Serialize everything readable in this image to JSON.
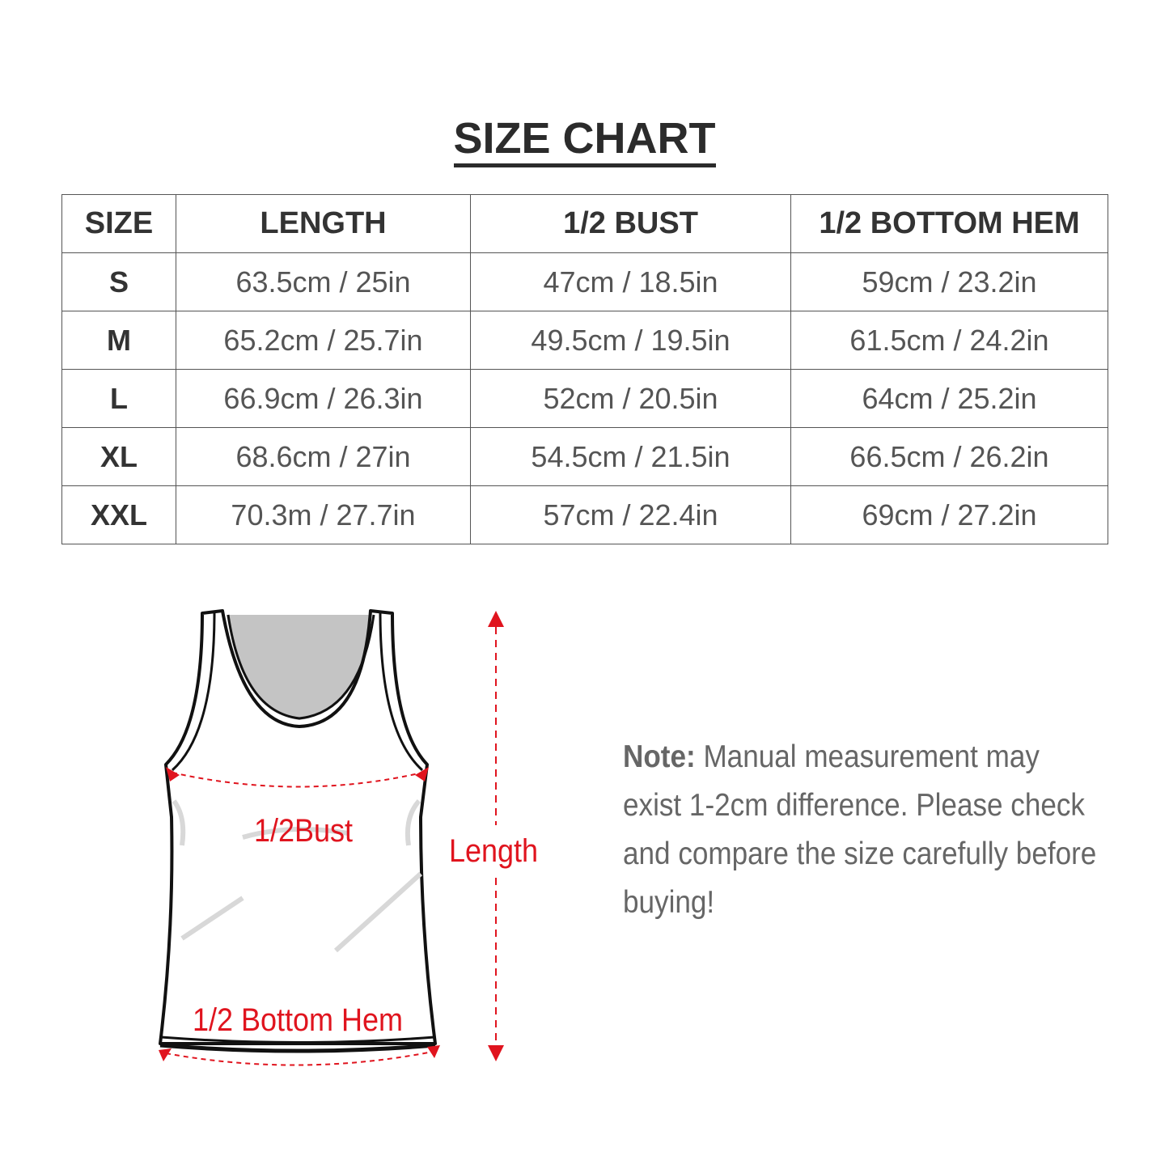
{
  "title": "SIZE CHART",
  "table": {
    "headers": [
      "SIZE",
      "LENGTH",
      "1/2 BUST",
      "1/2 BOTTOM HEM"
    ],
    "rows": [
      [
        "S",
        "63.5cm / 25in",
        "47cm / 18.5in",
        "59cm / 23.2in"
      ],
      [
        "M",
        "65.2cm / 25.7in",
        "49.5cm / 19.5in",
        "61.5cm / 24.2in"
      ],
      [
        "L",
        "66.9cm / 26.3in",
        "52cm / 20.5in",
        "64cm / 25.2in"
      ],
      [
        "XL",
        "68.6cm / 27in",
        "54.5cm / 21.5in",
        "66.5cm / 26.2in"
      ],
      [
        "XXL",
        "70.3m / 27.7in",
        "57cm / 22.4in",
        "69cm / 27.2in"
      ]
    ]
  },
  "diagram": {
    "bust_label": "1/2Bust",
    "hem_label": "1/2 Bottom Hem",
    "length_label": "Length",
    "accent_color": "#e0141e"
  },
  "note": {
    "label": "Note:",
    "text": " Manual measurement may exist 1-2cm difference. Please check and compare the size carefully before buying!"
  }
}
